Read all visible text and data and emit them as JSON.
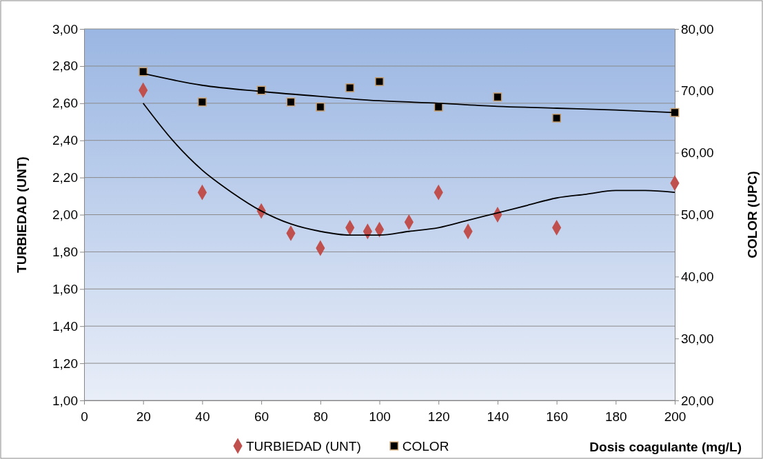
{
  "chart_data": {
    "type": "scatter",
    "xlabel": "Dosis coagulante (mg/L)",
    "ylabel": "TURBIEDAD (UNT)",
    "y2label": "COLOR (UPC)",
    "xlim": [
      0,
      200
    ],
    "xticks": [
      0,
      20,
      40,
      60,
      80,
      100,
      120,
      140,
      160,
      180,
      200
    ],
    "ylim": [
      1,
      3
    ],
    "yticks": [
      {
        "value": 1,
        "label": "1,00"
      },
      {
        "value": 1.2,
        "label": "1,20"
      },
      {
        "value": 1.4,
        "label": "1,40"
      },
      {
        "value": 1.6,
        "label": "1,60"
      },
      {
        "value": 1.8,
        "label": "1,80"
      },
      {
        "value": 2,
        "label": "2,00"
      },
      {
        "value": 2.2,
        "label": "2,20"
      },
      {
        "value": 2.4,
        "label": "2,40"
      },
      {
        "value": 2.6,
        "label": "2,60"
      },
      {
        "value": 2.8,
        "label": "2,80"
      },
      {
        "value": 3,
        "label": "3,00"
      }
    ],
    "y2lim": [
      20,
      80
    ],
    "y2ticks": [
      {
        "value": 20,
        "label": "20,00"
      },
      {
        "value": 30,
        "label": "30,00"
      },
      {
        "value": 40,
        "label": "40,00"
      },
      {
        "value": 50,
        "label": "50,00"
      },
      {
        "value": 60,
        "label": "60,00"
      },
      {
        "value": 70,
        "label": "70,00"
      },
      {
        "value": 80,
        "label": "80,00"
      }
    ],
    "grid": "y",
    "legend": "bottom",
    "series": [
      {
        "name": "TURBIEDAD (UNT)",
        "marker": "diamond",
        "color": "#c0504d",
        "x": [
          20,
          40,
          60,
          70,
          80,
          90,
          96,
          100,
          110,
          120,
          130,
          140,
          160,
          200
        ],
        "values": [
          2.67,
          2.12,
          2.02,
          1.9,
          1.82,
          1.93,
          1.91,
          1.92,
          1.96,
          2.12,
          1.91,
          2.0,
          1.93,
          2.17
        ]
      },
      {
        "name": "COLOR",
        "marker": "square",
        "axis": "y2",
        "color": "#000000",
        "x": [
          20,
          40,
          60,
          70,
          80,
          90,
          100,
          120,
          140,
          160,
          200
        ],
        "values": [
          73.1,
          68.2,
          70.1,
          68.2,
          67.4,
          70.5,
          71.5,
          67.4,
          69.0,
          65.6,
          66.5
        ]
      },
      {
        "type": "line",
        "marker": "none",
        "color": "#000000",
        "x": [
          20,
          30,
          40,
          50,
          60,
          70,
          80,
          90,
          100,
          110,
          120,
          130,
          140,
          150,
          160,
          170,
          180,
          190,
          200
        ],
        "values": [
          2.6,
          2.4,
          2.24,
          2.12,
          2.02,
          1.95,
          1.91,
          1.89,
          1.89,
          1.91,
          1.93,
          1.97,
          2.01,
          2.05,
          2.09,
          2.11,
          2.13,
          2.13,
          2.12
        ]
      },
      {
        "type": "line",
        "marker": "none",
        "axis": "y2",
        "color": "#000000",
        "x": [
          20,
          40,
          60,
          80,
          100,
          120,
          140,
          160,
          180,
          200
        ],
        "values": [
          72.8,
          70.9,
          69.9,
          69.1,
          68.4,
          68.0,
          67.5,
          67.2,
          66.9,
          66.5
        ]
      }
    ]
  }
}
